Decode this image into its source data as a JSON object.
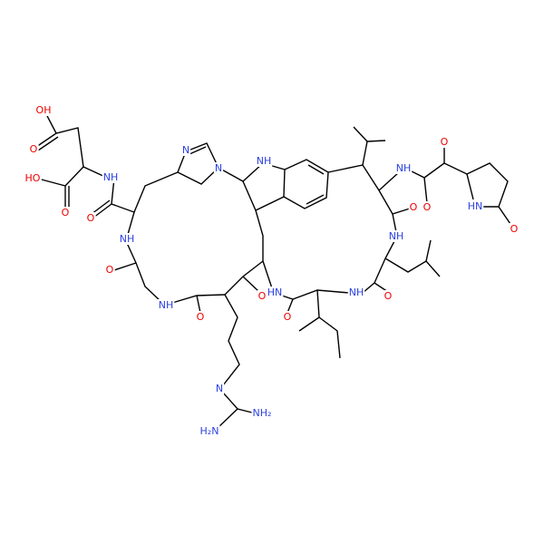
{
  "atoms": [
    {
      "label": "OH"
    },
    {
      "label": "O"
    },
    {
      "label": "HO"
    },
    {
      "label": "O"
    },
    {
      "label": "NH"
    },
    {
      "label": "O"
    },
    {
      "label": "N"
    },
    {
      "label": "N"
    },
    {
      "label": "NH"
    },
    {
      "label": "NH"
    },
    {
      "label": "O"
    },
    {
      "label": "NH"
    },
    {
      "label": "O"
    },
    {
      "label": "O"
    },
    {
      "label": "HN"
    },
    {
      "label": "O"
    },
    {
      "label": "NH"
    },
    {
      "label": "O"
    },
    {
      "label": "NH"
    },
    {
      "label": "O"
    },
    {
      "label": "NH"
    },
    {
      "label": "O"
    },
    {
      "label": "O"
    },
    {
      "label": "HN"
    },
    {
      "label": "O"
    },
    {
      "label": "N"
    },
    {
      "label": "NH₂"
    },
    {
      "label": "H₂N"
    }
  ]
}
